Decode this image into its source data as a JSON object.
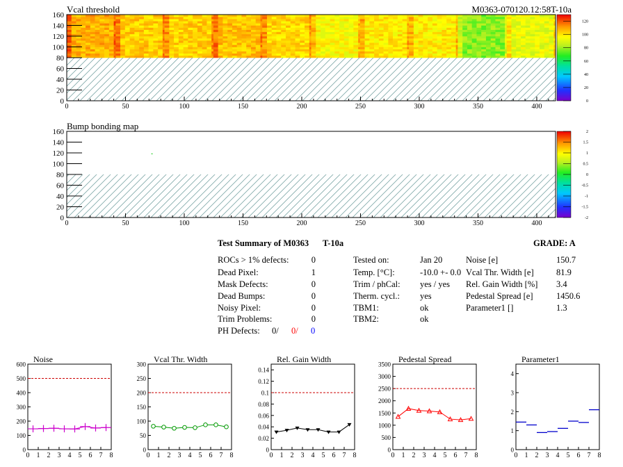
{
  "header": {
    "module_id": "M0363-070120.12:58T-10a"
  },
  "maps": [
    {
      "title": "Vcal threshold",
      "xlim": [
        0,
        416
      ],
      "ylim": [
        0,
        160
      ],
      "x_ticks": [
        "0",
        "50",
        "100",
        "150",
        "200",
        "250",
        "300",
        "350",
        "400"
      ],
      "y_ticks": [
        "0",
        "20",
        "40",
        "60",
        "80",
        "100",
        "120",
        "140",
        "160"
      ],
      "filled_rows": [
        80,
        160
      ],
      "roc_value_levels": [
        108,
        104,
        103,
        106,
        102,
        96,
        99,
        98,
        78,
        92
      ],
      "colorbar": {
        "min": 0,
        "max": 130,
        "ticks": [
          "0",
          "20",
          "40",
          "60",
          "80",
          "100",
          "120"
        ]
      }
    },
    {
      "title": "Bump bonding map",
      "xlim": [
        0,
        416
      ],
      "ylim": [
        0,
        160
      ],
      "x_ticks": [
        "0",
        "50",
        "100",
        "150",
        "200",
        "250",
        "300",
        "350",
        "400"
      ],
      "y_ticks": [
        "0",
        "20",
        "40",
        "60",
        "80",
        "100",
        "120",
        "140",
        "160"
      ],
      "filled_rows": [
        80,
        160
      ],
      "single_point": {
        "x": 72,
        "y": 119
      },
      "colorbar": {
        "min": -2,
        "max": 2,
        "ticks": [
          "-2",
          "-1.5",
          "-1",
          "-0.5",
          "0",
          "0.5",
          "1",
          "1.5",
          "2"
        ]
      }
    }
  ],
  "summary": {
    "title": "Test Summary of M0363",
    "temp_tag": "T-10a",
    "grade_label": "GRADE:  A",
    "defects": [
      {
        "label": "ROCs > 1% defects:",
        "value": "0"
      },
      {
        "label": "Dead Pixel:",
        "value": "1"
      },
      {
        "label": "Mask Defects:",
        "value": "0"
      },
      {
        "label": "Dead Bumps:",
        "value": "0"
      },
      {
        "label": "Noisy Pixel:",
        "value": "0"
      },
      {
        "label": "Trim Problems:",
        "value": "0"
      }
    ],
    "ph_defects": {
      "label": "PH Defects:",
      "v1": "0/",
      "v2": "0/",
      "v3": "0",
      "color2": "#ff0000",
      "color3": "#0000ff"
    },
    "conditions": [
      {
        "label": "Tested on:",
        "value": "Jan 20"
      },
      {
        "label": "Temp. [°C]:",
        "value": "-10.0 +- 0.0"
      },
      {
        "label": "Trim / phCal:",
        "value": "yes / yes"
      },
      {
        "label": "Therm. cycl.:",
        "value": "yes"
      },
      {
        "label": "TBM1:",
        "value": "ok"
      },
      {
        "label": "TBM2:",
        "value": "ok"
      }
    ],
    "results": [
      {
        "label": "Noise [e]",
        "value": "150.7"
      },
      {
        "label": "Vcal Thr. Width [e]",
        "value": "81.9"
      },
      {
        "label": "Rel. Gain Width [%]",
        "value": "3.4"
      },
      {
        "label": "Pedestal Spread [e]",
        "value": "1450.6"
      },
      {
        "label": "Parameter1 []",
        "value": "1.3"
      }
    ]
  },
  "chart_data": [
    {
      "type": "line",
      "title": "Noise",
      "x": [
        0.5,
        1.5,
        2.5,
        3.5,
        4.5,
        5.5,
        6.5,
        7.5
      ],
      "values": [
        146,
        148,
        150,
        146,
        145,
        162,
        152,
        155
      ],
      "ylim": [
        0,
        600
      ],
      "xlim": [
        0,
        8
      ],
      "y_ticks": [
        0,
        100,
        200,
        300,
        400,
        500,
        600
      ],
      "y_tick_labels": [
        "0",
        "100",
        "200",
        "300",
        "400",
        "500",
        "600"
      ],
      "limit": 500,
      "color": "#cc00cc",
      "marker": "plus"
    },
    {
      "type": "line",
      "title": "Vcal Thr. Width",
      "x": [
        0.5,
        1.5,
        2.5,
        3.5,
        4.5,
        5.5,
        6.5,
        7.5
      ],
      "values": [
        82,
        79,
        75,
        78,
        77,
        87,
        87,
        80
      ],
      "ylim": [
        0,
        300
      ],
      "xlim": [
        0,
        8
      ],
      "y_ticks": [
        0,
        50,
        100,
        150,
        200,
        250,
        300
      ],
      "y_tick_labels": [
        "0",
        "50",
        "100",
        "150",
        "200",
        "250",
        "300"
      ],
      "limit": 200,
      "color": "#009900",
      "marker": "circle"
    },
    {
      "type": "line",
      "title": "Rel. Gain Width",
      "x": [
        0.5,
        1.5,
        2.5,
        3.5,
        4.5,
        5.5,
        6.5,
        7.5
      ],
      "values": [
        0.031,
        0.034,
        0.038,
        0.035,
        0.035,
        0.031,
        0.031,
        0.044
      ],
      "ylim": [
        0,
        0.15
      ],
      "xlim": [
        0,
        8
      ],
      "y_ticks": [
        0,
        0.02,
        0.04,
        0.06,
        0.08,
        0.1,
        0.12,
        0.14
      ],
      "y_tick_labels": [
        "0",
        "0.02",
        "0.04",
        "0.06",
        "0.08",
        "0.1",
        "0.12",
        "0.14"
      ],
      "limit": 0.1,
      "color": "#000000",
      "marker": "triangle-down"
    },
    {
      "type": "line",
      "title": "Pedestal Spread",
      "x": [
        0.5,
        1.5,
        2.5,
        3.5,
        4.5,
        5.5,
        6.5,
        7.5
      ],
      "values": [
        1350,
        1680,
        1600,
        1580,
        1540,
        1250,
        1220,
        1270
      ],
      "ylim": [
        0,
        3500
      ],
      "xlim": [
        0,
        8
      ],
      "y_ticks": [
        0,
        500,
        1000,
        1500,
        2000,
        2500,
        3000,
        3500
      ],
      "y_tick_labels": [
        "0",
        "500",
        "1000",
        "1500",
        "2000",
        "2500",
        "3000",
        "3500"
      ],
      "limit": 2500,
      "color": "#ff0000",
      "marker": "triangle-up"
    },
    {
      "type": "line",
      "title": "Parameter1",
      "x": [
        0.5,
        1.5,
        2.5,
        3.5,
        4.5,
        5.5,
        6.5,
        7.5
      ],
      "values": [
        1.45,
        1.3,
        0.9,
        0.95,
        1.12,
        1.5,
        1.43,
        2.1
      ],
      "ylim": [
        0,
        4.5
      ],
      "xlim": [
        0,
        8
      ],
      "y_ticks": [
        0,
        1,
        2,
        3,
        4
      ],
      "y_tick_labels": [
        "0",
        "1",
        "2",
        "3",
        "4"
      ],
      "limit": null,
      "color": "#0000cc",
      "marker": "hline",
      "connected": false
    }
  ]
}
